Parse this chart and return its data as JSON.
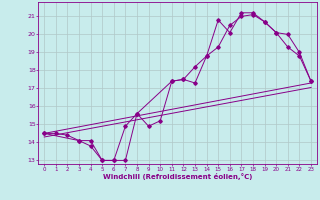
{
  "xlabel": "Windchill (Refroidissement éolien,°C)",
  "bg_color": "#c8ecec",
  "grid_color": "#b0c8c8",
  "line_color": "#880088",
  "xlim": [
    -0.5,
    23.5
  ],
  "ylim": [
    12.8,
    21.8
  ],
  "xticks": [
    0,
    1,
    2,
    3,
    4,
    5,
    6,
    7,
    8,
    9,
    10,
    11,
    12,
    13,
    14,
    15,
    16,
    17,
    18,
    19,
    20,
    21,
    22,
    23
  ],
  "yticks": [
    13,
    14,
    15,
    16,
    17,
    18,
    19,
    20,
    21
  ],
  "series1_x": [
    0,
    1,
    2,
    3,
    4,
    5,
    6,
    7,
    8,
    9,
    10,
    11,
    12,
    13,
    14,
    15,
    16,
    17,
    18,
    19,
    20,
    21,
    22,
    23
  ],
  "series1_y": [
    14.5,
    14.5,
    14.4,
    14.1,
    13.8,
    13.0,
    13.0,
    13.0,
    15.6,
    14.9,
    15.2,
    17.4,
    17.5,
    17.3,
    18.8,
    20.8,
    20.1,
    21.2,
    21.2,
    20.7,
    20.1,
    19.3,
    18.8,
    17.4
  ],
  "series2_x": [
    0,
    3,
    4,
    5,
    6,
    7,
    8,
    11,
    12,
    13,
    14,
    15,
    16,
    17,
    18,
    19,
    20,
    21,
    22,
    23
  ],
  "series2_y": [
    14.5,
    14.1,
    14.1,
    13.0,
    13.0,
    14.9,
    15.6,
    17.4,
    17.5,
    18.2,
    18.8,
    19.3,
    20.5,
    21.0,
    21.1,
    20.7,
    20.1,
    20.0,
    19.0,
    17.4
  ],
  "line3_x": [
    0,
    23
  ],
  "line3_y": [
    14.5,
    17.3
  ],
  "line4_x": [
    0,
    23
  ],
  "line4_y": [
    14.3,
    17.05
  ]
}
